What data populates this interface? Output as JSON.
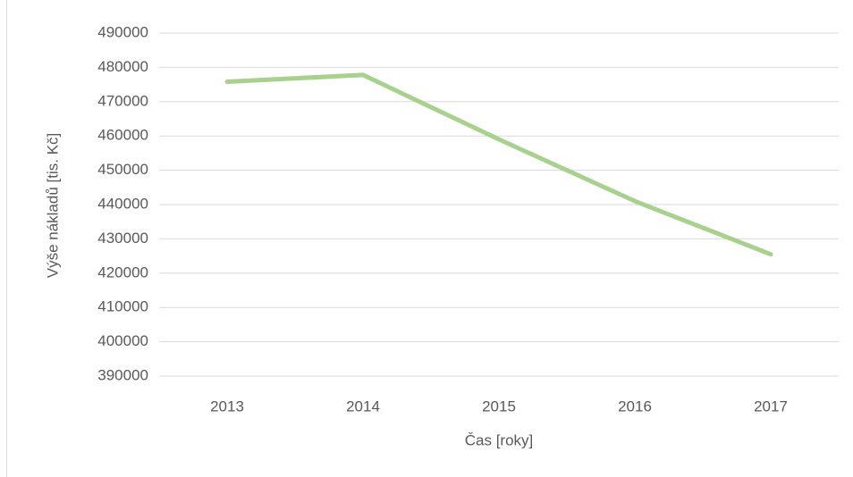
{
  "chart_data": {
    "type": "line",
    "categories": [
      "2013",
      "2014",
      "2015",
      "2016",
      "2017"
    ],
    "series": [
      {
        "name": "Výše nákladů",
        "color": "#a9d18e",
        "values": [
          475800,
          477800,
          459000,
          441000,
          425500
        ]
      }
    ],
    "ylim": [
      390000,
      490000
    ],
    "yticks": [
      390000,
      400000,
      410000,
      420000,
      430000,
      440000,
      450000,
      460000,
      470000,
      480000,
      490000
    ],
    "xlabel": "Čas [roky]",
    "ylabel": "Výše nákladů [tis. Kč]",
    "grid": true
  }
}
